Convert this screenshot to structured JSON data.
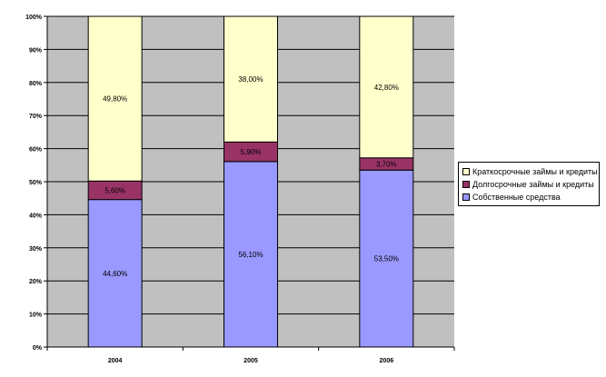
{
  "chart_data": {
    "type": "bar",
    "stacked": "percent",
    "categories": [
      "2004",
      "2005",
      "2006"
    ],
    "series": [
      {
        "name": "Собственные средства",
        "values": [
          44.6,
          56.1,
          53.5
        ],
        "labels": [
          "44,60%",
          "56,10%",
          "53,50%"
        ],
        "color": "#9999ff"
      },
      {
        "name": "Долгосрочные займы и кредиты",
        "values": [
          5.6,
          5.9,
          3.7
        ],
        "labels": [
          "5,60%",
          "5,90%",
          "3,70%"
        ],
        "color": "#993366"
      },
      {
        "name": "Краткосрочные займы и кредиты",
        "values": [
          49.8,
          38.0,
          42.8
        ],
        "labels": [
          "49,80%",
          "38,00%",
          "42,80%"
        ],
        "color": "#ffffcc"
      }
    ],
    "yticks": [
      "0%",
      "10%",
      "20%",
      "30%",
      "40%",
      "50%",
      "60%",
      "70%",
      "80%",
      "90%",
      "100%"
    ],
    "ylim": [
      0,
      100
    ],
    "grid": true,
    "plot_background": "#c0c0c0",
    "legend_position": "right",
    "legend_order": [
      "Краткосрочные займы и кредиты",
      "Долгосрочные займы и кредиты",
      "Собственные средства"
    ]
  }
}
